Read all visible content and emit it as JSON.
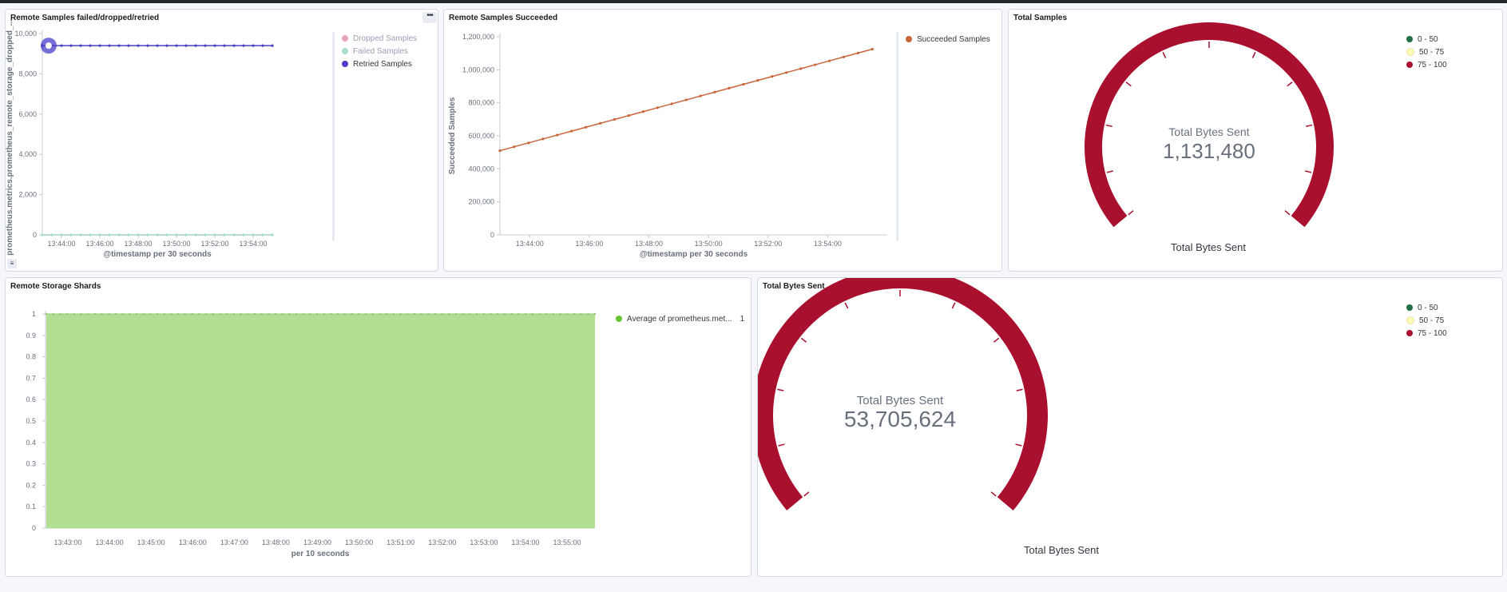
{
  "panels": {
    "failed_dropped": {
      "title": "Remote Samples failed/dropped/retried",
      "menu_icon": "ellipsis-icon",
      "legend": [
        {
          "label": "Dropped Samples",
          "color": "#e7a3c0",
          "faded": true
        },
        {
          "label": "Failed Samples",
          "color": "#a6dfcb",
          "faded": true
        },
        {
          "label": "Retried Samples",
          "color": "#4a3fc9",
          "faded": false
        }
      ]
    },
    "succeeded": {
      "title": "Remote Samples Succeeded",
      "legend": [
        {
          "label": "Succeeded Samples",
          "color": "#c8663a"
        }
      ]
    },
    "total_samples": {
      "title": "Total Samples",
      "legend": [
        {
          "label": "0 - 50",
          "color": "#1f6f43"
        },
        {
          "label": "50 - 75",
          "color": "#fffbb8"
        },
        {
          "label": "75 - 100",
          "color": "#a8102e"
        }
      ],
      "gauge_label": "Total Bytes Sent",
      "gauge_value": "1,131,480",
      "caption": "Total Bytes Sent"
    },
    "shards": {
      "title": "Remote Storage Shards",
      "legend": [
        {
          "label": "Average of prometheus.met...",
          "value": "1",
          "color": "#54b399"
        }
      ]
    },
    "bytes_sent": {
      "title": "Total Bytes Sent",
      "legend": [
        {
          "label": "0 - 50",
          "color": "#1f6f43"
        },
        {
          "label": "50 - 75",
          "color": "#fffbb8"
        },
        {
          "label": "75 - 100",
          "color": "#a8102e"
        }
      ],
      "gauge_label": "Total Bytes Sent",
      "gauge_value": "53,705,624",
      "caption": "Total Bytes Sent"
    }
  },
  "chart_data": [
    {
      "type": "line",
      "title": "Remote Samples failed/dropped/retried",
      "xlabel": "@timestamp per 30 seconds",
      "ylabel": "prometheus.metrics.prometheus_remote_storage_dropped_...",
      "ylim": [
        0,
        10000
      ],
      "yticks": [
        "0",
        "2,000",
        "4,000",
        "6,000",
        "8,000",
        "10,000"
      ],
      "xticks": [
        "13:44:00",
        "13:46:00",
        "13:48:00",
        "13:50:00",
        "13:52:00",
        "13:54:00"
      ],
      "x_start_minutes": 43.0,
      "x_end_minutes": 55.0,
      "series": [
        {
          "name": "Retried Samples",
          "color": "#4a3fc9",
          "constant": 9400,
          "points": 25
        },
        {
          "name": "Failed Samples",
          "color": "#a6dfcb",
          "constant": 0,
          "points": 25
        },
        {
          "name": "Dropped Samples",
          "color": "#e7a3c0",
          "constant": 0,
          "points": 25
        }
      ],
      "legend_position": "right"
    },
    {
      "type": "line",
      "title": "Remote Samples Succeeded",
      "xlabel": "@timestamp per 30 seconds",
      "ylabel": "Succeeded Samples",
      "ylim": [
        0,
        1200000
      ],
      "yticks": [
        "0",
        "200,000",
        "400,000",
        "600,000",
        "800,000",
        "1,000,000",
        "1,200,000"
      ],
      "xticks": [
        "13:44:00",
        "13:46:00",
        "13:48:00",
        "13:50:00",
        "13:52:00",
        "13:54:00"
      ],
      "x_start_minutes": 43.0,
      "x_end_minutes": 56.0,
      "series": [
        {
          "name": "Succeeded Samples",
          "color": "#c8663a",
          "start": 510000,
          "end": 1125000,
          "points": 27
        }
      ],
      "legend_position": "right"
    },
    {
      "type": "area",
      "title": "Remote Storage Shards",
      "xlabel": "per 10 seconds",
      "ylim": [
        0,
        1
      ],
      "yticks": [
        "0",
        "0.1",
        "0.2",
        "0.3",
        "0.4",
        "0.5",
        "0.6",
        "0.7",
        "0.8",
        "0.9",
        "1"
      ],
      "xticks": [
        "13:43:00",
        "13:44:00",
        "13:45:00",
        "13:46:00",
        "13:47:00",
        "13:48:00",
        "13:49:00",
        "13:50:00",
        "13:51:00",
        "13:52:00",
        "13:53:00",
        "13:54:00",
        "13:55:00"
      ],
      "series": [
        {
          "name": "Average of prometheus.met...",
          "color": "#b2de92",
          "constant": 1,
          "points": 80
        }
      ],
      "legend_position": "right"
    }
  ]
}
